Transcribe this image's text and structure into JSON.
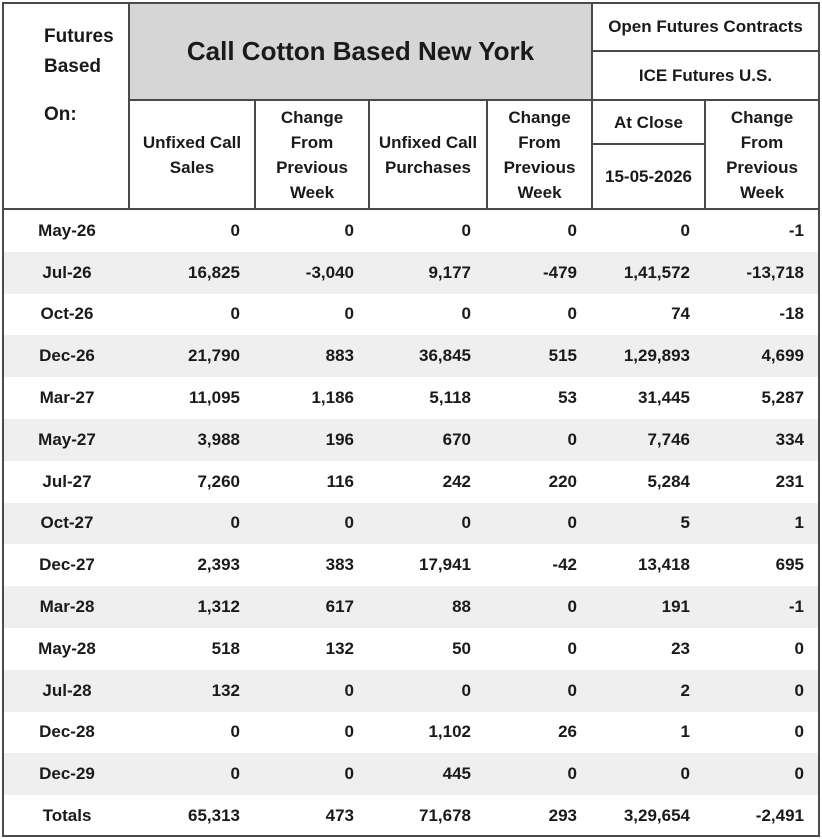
{
  "corner_label": {
    "line1": "Futures",
    "line2": "Based",
    "line3": "On:"
  },
  "title": "Call Cotton Based New York",
  "right_header": {
    "line1": "Open Futures Contracts",
    "line2": "ICE Futures U.S."
  },
  "columns": {
    "unfixed_sales": [
      "Unfixed Call",
      "Sales"
    ],
    "change_sales": [
      "Change",
      "From",
      "Previous",
      "Week"
    ],
    "unfixed_purchases": [
      "Unfixed Call",
      "Purchases"
    ],
    "change_purchases": [
      "Change",
      "From",
      "Previous",
      "Week"
    ],
    "at_close": "At Close",
    "date": "15-05-2026",
    "change_open": [
      "Change",
      "From",
      "Previous",
      "Week"
    ]
  },
  "rows": [
    {
      "label": "May-26",
      "values": [
        "0",
        "0",
        "0",
        "0",
        "0",
        "-1"
      ]
    },
    {
      "label": "Jul-26",
      "values": [
        "16,825",
        "-3,040",
        "9,177",
        "-479",
        "1,41,572",
        "-13,718"
      ]
    },
    {
      "label": "Oct-26",
      "values": [
        "0",
        "0",
        "0",
        "0",
        "74",
        "-18"
      ]
    },
    {
      "label": "Dec-26",
      "values": [
        "21,790",
        "883",
        "36,845",
        "515",
        "1,29,893",
        "4,699"
      ]
    },
    {
      "label": "Mar-27",
      "values": [
        "11,095",
        "1,186",
        "5,118",
        "53",
        "31,445",
        "5,287"
      ]
    },
    {
      "label": "May-27",
      "values": [
        "3,988",
        "196",
        "670",
        "0",
        "7,746",
        "334"
      ]
    },
    {
      "label": "Jul-27",
      "values": [
        "7,260",
        "116",
        "242",
        "220",
        "5,284",
        "231"
      ]
    },
    {
      "label": "Oct-27",
      "values": [
        "0",
        "0",
        "0",
        "0",
        "5",
        "1"
      ]
    },
    {
      "label": "Dec-27",
      "values": [
        "2,393",
        "383",
        "17,941",
        "-42",
        "13,418",
        "695"
      ]
    },
    {
      "label": "Mar-28",
      "values": [
        "1,312",
        "617",
        "88",
        "0",
        "191",
        "-1"
      ]
    },
    {
      "label": "May-28",
      "values": [
        "518",
        "132",
        "50",
        "0",
        "23",
        "0"
      ]
    },
    {
      "label": "Jul-28",
      "values": [
        "132",
        "0",
        "0",
        "0",
        "2",
        "0"
      ]
    },
    {
      "label": "Dec-28",
      "values": [
        "0",
        "0",
        "1,102",
        "26",
        "1",
        "0"
      ]
    },
    {
      "label": "Dec-29",
      "values": [
        "0",
        "0",
        "445",
        "0",
        "0",
        "0"
      ]
    },
    {
      "label": "Totals",
      "values": [
        "65,313",
        "473",
        "71,678",
        "293",
        "3,29,654",
        "-2,491"
      ]
    }
  ]
}
